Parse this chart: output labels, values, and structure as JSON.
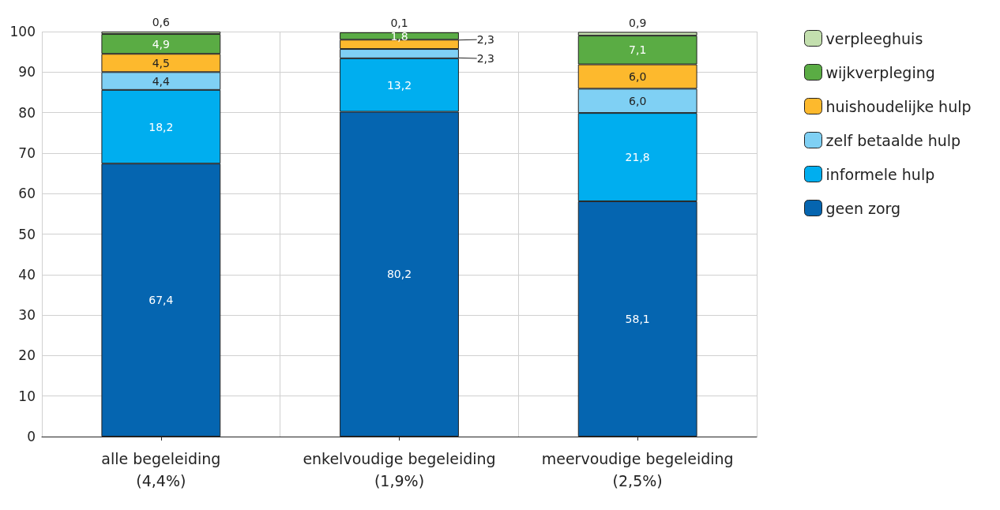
{
  "chart_data": {
    "type": "bar",
    "stacked": true,
    "categories": [
      "alle begeleiding\n(4,4%)",
      "enkelvoudige begeleiding\n(1,9%)",
      "meervoudige begeleiding\n(2,5%)"
    ],
    "series": [
      {
        "name": "geen zorg",
        "color": "#0565b0",
        "values": [
          67.4,
          80.2,
          58.1
        ],
        "value_labels": [
          "67,4",
          "80,2",
          "58,1"
        ]
      },
      {
        "name": "informele hulp",
        "color": "#00aeef",
        "values": [
          18.2,
          13.2,
          21.8
        ],
        "value_labels": [
          "18,2",
          "13,2",
          "21,8"
        ]
      },
      {
        "name": "zelf betaalde hulp",
        "color": "#7fd0f4",
        "values": [
          4.4,
          2.3,
          6.0
        ],
        "value_labels": [
          "4,4",
          "2,3",
          "6,0"
        ]
      },
      {
        "name": "huishoudelijke hulp",
        "color": "#fdb92d",
        "values": [
          4.5,
          2.3,
          6.0
        ],
        "value_labels": [
          "4,5",
          "2,3",
          "6,0"
        ]
      },
      {
        "name": "wijkverpleging",
        "color": "#5aac44",
        "values": [
          4.9,
          1.8,
          7.1
        ],
        "value_labels": [
          "4,9",
          "1,8",
          "7,1"
        ]
      },
      {
        "name": "verpleeghuis",
        "color": "#c3dfae",
        "values": [
          0.6,
          0.1,
          0.9
        ],
        "value_labels": [
          "0,6",
          "0,1",
          "0,9"
        ]
      }
    ],
    "ylim": [
      0,
      100
    ],
    "yticks": [
      0,
      10,
      20,
      30,
      40,
      50,
      60,
      70,
      80,
      90,
      100
    ],
    "grid": true,
    "legend": "right"
  }
}
